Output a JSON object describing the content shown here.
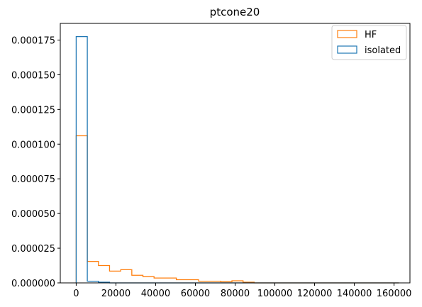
{
  "chart_data": {
    "type": "histogram",
    "title": "ptcone20",
    "xlabel": "",
    "ylabel": "",
    "xlim": [
      -8000,
      168000
    ],
    "ylim": [
      0,
      0.000187
    ],
    "x_ticks": [
      0,
      20000,
      40000,
      60000,
      80000,
      100000,
      120000,
      140000,
      160000
    ],
    "x_tick_labels": [
      "0",
      "20000",
      "40000",
      "60000",
      "80000",
      "100000",
      "120000",
      "140000",
      "160000"
    ],
    "y_ticks": [
      0,
      2.5e-05,
      5e-05,
      7.5e-05,
      0.0001,
      0.000125,
      0.00015,
      0.000175
    ],
    "y_tick_labels": [
      "0.000000",
      "0.000025",
      "0.000050",
      "0.000075",
      "0.000100",
      "0.000125",
      "0.000150",
      "0.000175"
    ],
    "bin_edges": [
      0,
      5600,
      11200,
      16800,
      22400,
      28000,
      33600,
      39200,
      44800,
      50400,
      56000,
      61600,
      67200,
      72800,
      78400,
      84000,
      89600,
      95200,
      100800,
      106400,
      112000,
      117600,
      123200,
      128800,
      134400,
      140000,
      145600,
      151200,
      156800,
      162400
    ],
    "series": [
      {
        "name": "HF",
        "color": "#ff7f0e",
        "style": "step",
        "values": [
          0.000106,
          1.55e-05,
          1.25e-05,
          8.5e-06,
          9.5e-06,
          5.5e-06,
          4.5e-06,
          3.5e-06,
          3.5e-06,
          2.3e-06,
          2.3e-06,
          1.2e-06,
          1.2e-06,
          8e-07,
          1.5e-06,
          5e-07,
          0,
          0,
          0,
          0,
          0,
          0,
          0,
          0,
          0,
          0,
          0,
          0,
          0
        ]
      },
      {
        "name": "isolated",
        "color": "#1f77b4",
        "style": "step",
        "values": [
          0.0001775,
          1.2e-06,
          5e-07,
          0,
          0,
          0,
          0,
          0,
          0,
          0,
          0,
          0,
          0,
          0,
          0,
          0,
          0,
          0,
          0,
          0,
          0,
          0,
          0,
          0,
          0,
          0,
          0,
          0,
          0
        ]
      }
    ],
    "legend": {
      "placement": "top-right"
    },
    "grid": false
  }
}
